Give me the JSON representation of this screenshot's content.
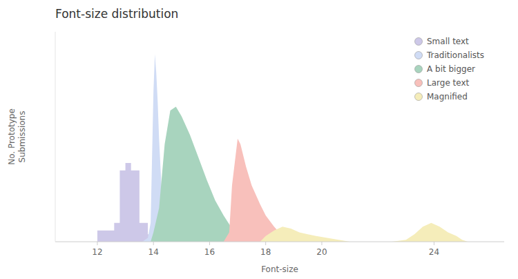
{
  "chart_data": {
    "type": "area",
    "title": "Font-size distribution",
    "x_label": "Font-size",
    "y_label": "No. Prototype\nSubmissions",
    "series": [
      {
        "name": "Small text",
        "color": "#cdc8e8",
        "x": [
          11.8,
          12.0,
          12.0,
          12.6,
          12.6,
          12.8,
          12.8,
          13.0,
          13.0,
          13.2,
          13.2,
          13.5,
          13.5,
          13.8,
          13.8,
          14.0,
          14.0
        ],
        "values": [
          0,
          0,
          0.06,
          0.06,
          0.1,
          0.1,
          0.38,
          0.38,
          0.42,
          0.42,
          0.38,
          0.38,
          0.1,
          0.1,
          0.04,
          0.04,
          0
        ]
      },
      {
        "name": "Traditionalists",
        "color": "#d0dcf5",
        "x": [
          13.6,
          13.8,
          13.9,
          14.0,
          14.05,
          14.1,
          14.15,
          14.2,
          14.3,
          14.5,
          14.7,
          14.9,
          15.1
        ],
        "values": [
          0,
          0.02,
          0.1,
          0.8,
          1.0,
          0.9,
          0.75,
          0.55,
          0.25,
          0.08,
          0.03,
          0.01,
          0
        ]
      },
      {
        "name": "A bit bigger",
        "color": "#a8d4be",
        "x": [
          13.9,
          14.0,
          14.2,
          14.4,
          14.6,
          14.8,
          15.0,
          15.3,
          15.6,
          15.9,
          16.2,
          16.5,
          16.8,
          17.0,
          17.1
        ],
        "values": [
          0,
          0.05,
          0.18,
          0.52,
          0.7,
          0.72,
          0.67,
          0.57,
          0.45,
          0.33,
          0.22,
          0.14,
          0.07,
          0.02,
          0
        ]
      },
      {
        "name": "Large text",
        "color": "#f8c0bb",
        "x": [
          16.5,
          16.7,
          16.8,
          17.0,
          17.1,
          17.3,
          17.5,
          17.8,
          18.0,
          18.3,
          18.6,
          18.9
        ],
        "values": [
          0,
          0.05,
          0.3,
          0.55,
          0.52,
          0.4,
          0.3,
          0.2,
          0.14,
          0.08,
          0.03,
          0
        ]
      },
      {
        "name": "Magnified",
        "color": "#f5edba",
        "x": [
          17.8,
          18.0,
          18.3,
          18.6,
          18.9,
          19.2,
          19.5,
          19.8,
          20.2,
          20.6,
          21.0,
          22.5,
          23.0,
          23.3,
          23.6,
          23.9,
          24.2,
          24.5,
          24.8,
          25.0,
          25.2
        ],
        "values": [
          0,
          0.03,
          0.06,
          0.08,
          0.07,
          0.05,
          0.04,
          0.03,
          0.02,
          0.01,
          0,
          0,
          0.01,
          0.04,
          0.08,
          0.1,
          0.08,
          0.05,
          0.03,
          0.01,
          0
        ]
      }
    ],
    "xlim": [
      10.5,
      26.5
    ],
    "ylim": [
      0,
      1.12
    ],
    "xticks": [
      12,
      14,
      16,
      18,
      20,
      24
    ],
    "tick_labels": "x",
    "grid": false,
    "legend": "upper right"
  }
}
